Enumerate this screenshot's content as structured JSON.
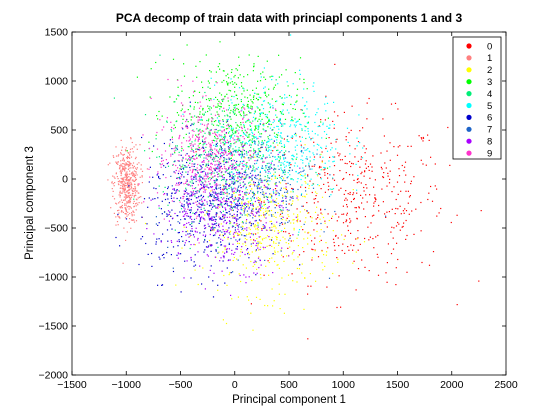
{
  "chart_data": {
    "type": "scatter",
    "title": "PCA decomp of train data with princiapl components 1 and 3",
    "xlabel": "Principal component 1",
    "ylabel": "Principal component 3",
    "xlim": [
      -1500,
      2500
    ],
    "ylim": [
      -2000,
      1500
    ],
    "xticks": [
      -1500,
      -1000,
      -500,
      0,
      500,
      1000,
      1500,
      2000,
      2500
    ],
    "yticks": [
      -2000,
      -1500,
      -1000,
      -500,
      0,
      500,
      1000,
      1500
    ],
    "grid": false,
    "legend_position": "top-right",
    "series": [
      {
        "name": "0",
        "color": "#ff0000",
        "center": [
          1100,
          -200
        ],
        "spread": [
          420,
          420
        ]
      },
      {
        "name": "1",
        "color": "#ff8080",
        "center": [
          -1000,
          -50
        ],
        "spread": [
          60,
          200
        ]
      },
      {
        "name": "2",
        "color": "#ffff00",
        "center": [
          300,
          -500
        ],
        "spread": [
          300,
          330
        ]
      },
      {
        "name": "3",
        "color": "#00ff00",
        "center": [
          0,
          700
        ],
        "spread": [
          300,
          270
        ]
      },
      {
        "name": "4",
        "color": "#00ee77",
        "center": [
          -100,
          200
        ],
        "spread": [
          300,
          300
        ]
      },
      {
        "name": "5",
        "color": "#00ffff",
        "center": [
          400,
          400
        ],
        "spread": [
          300,
          300
        ]
      },
      {
        "name": "6",
        "color": "#0000cc",
        "center": [
          -300,
          -300
        ],
        "spread": [
          280,
          330
        ]
      },
      {
        "name": "7",
        "color": "#1e64c8",
        "center": [
          100,
          -100
        ],
        "spread": [
          300,
          300
        ]
      },
      {
        "name": "8",
        "color": "#aa00ff",
        "center": [
          -100,
          -300
        ],
        "spread": [
          280,
          300
        ]
      },
      {
        "name": "9",
        "color": "#ff33cc",
        "center": [
          -250,
          250
        ],
        "spread": [
          250,
          270
        ]
      }
    ]
  }
}
